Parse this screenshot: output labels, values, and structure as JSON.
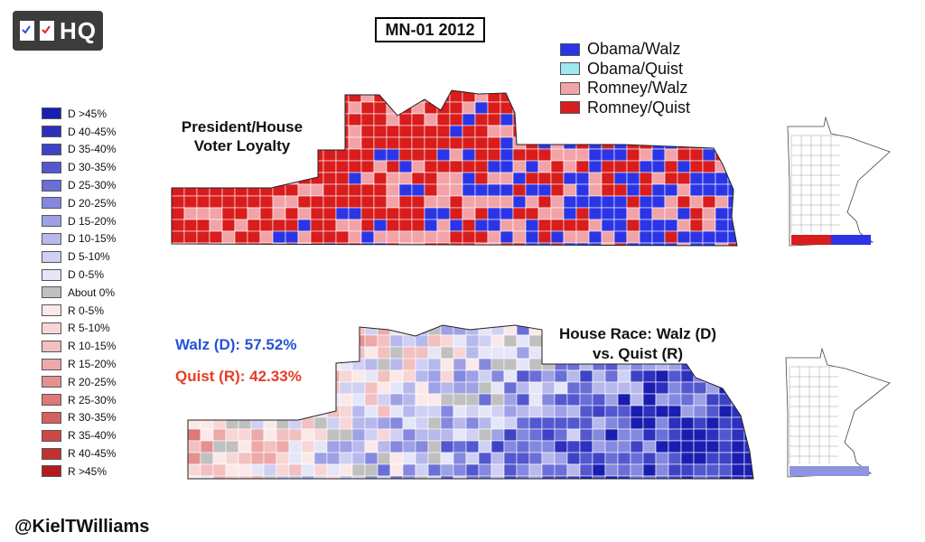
{
  "logo": {
    "text": "HQ"
  },
  "title": "MN-01 2012",
  "top_legend": [
    {
      "label": "Obama/Walz",
      "color": "#2b35e6"
    },
    {
      "label": "Obama/Quist",
      "color": "#9fe8f0"
    },
    {
      "label": "Romney/Walz",
      "color": "#f2a3a8"
    },
    {
      "label": "Romney/Quist",
      "color": "#d91c1c"
    }
  ],
  "scale_legend": [
    {
      "label": "D >45%",
      "color": "#1a1eb0"
    },
    {
      "label": "D 40-45%",
      "color": "#2c30bd"
    },
    {
      "label": "D 35-40%",
      "color": "#3e43c6"
    },
    {
      "label": "D 30-35%",
      "color": "#5358cf"
    },
    {
      "label": "D 25-30%",
      "color": "#6a6fd7"
    },
    {
      "label": "D 20-25%",
      "color": "#8488de"
    },
    {
      "label": "D 15-20%",
      "color": "#9ea1e5"
    },
    {
      "label": "D 10-15%",
      "color": "#b7b9ec"
    },
    {
      "label": "D 5-10%",
      "color": "#cfd0f3"
    },
    {
      "label": "D 0-5%",
      "color": "#e6e6f9"
    },
    {
      "label": "About 0%",
      "color": "#c0c0c0"
    },
    {
      "label": "R 0-5%",
      "color": "#fbe9e9"
    },
    {
      "label": "R 5-10%",
      "color": "#f8d6d6"
    },
    {
      "label": "R 10-15%",
      "color": "#f2c0c0"
    },
    {
      "label": "R 15-20%",
      "color": "#eda9a9"
    },
    {
      "label": "R 20-25%",
      "color": "#e69191"
    },
    {
      "label": "R 25-30%",
      "color": "#df7878"
    },
    {
      "label": "R 30-35%",
      "color": "#d66060"
    },
    {
      "label": "R 35-40%",
      "color": "#cd4848"
    },
    {
      "label": "R 40-45%",
      "color": "#c23131"
    },
    {
      "label": "R >45%",
      "color": "#b41c1c"
    }
  ],
  "map1": {
    "title_line1": "President/House",
    "title_line2": "Voter Loyalty"
  },
  "map2": {
    "title_line1": "House Race: Walz (D)",
    "title_line2": "vs. Quist (R)"
  },
  "results": {
    "walz": "Walz (D): 57.52%",
    "quist": "Quist (R): 42.33%"
  },
  "credit": "@KielTWilliams"
}
